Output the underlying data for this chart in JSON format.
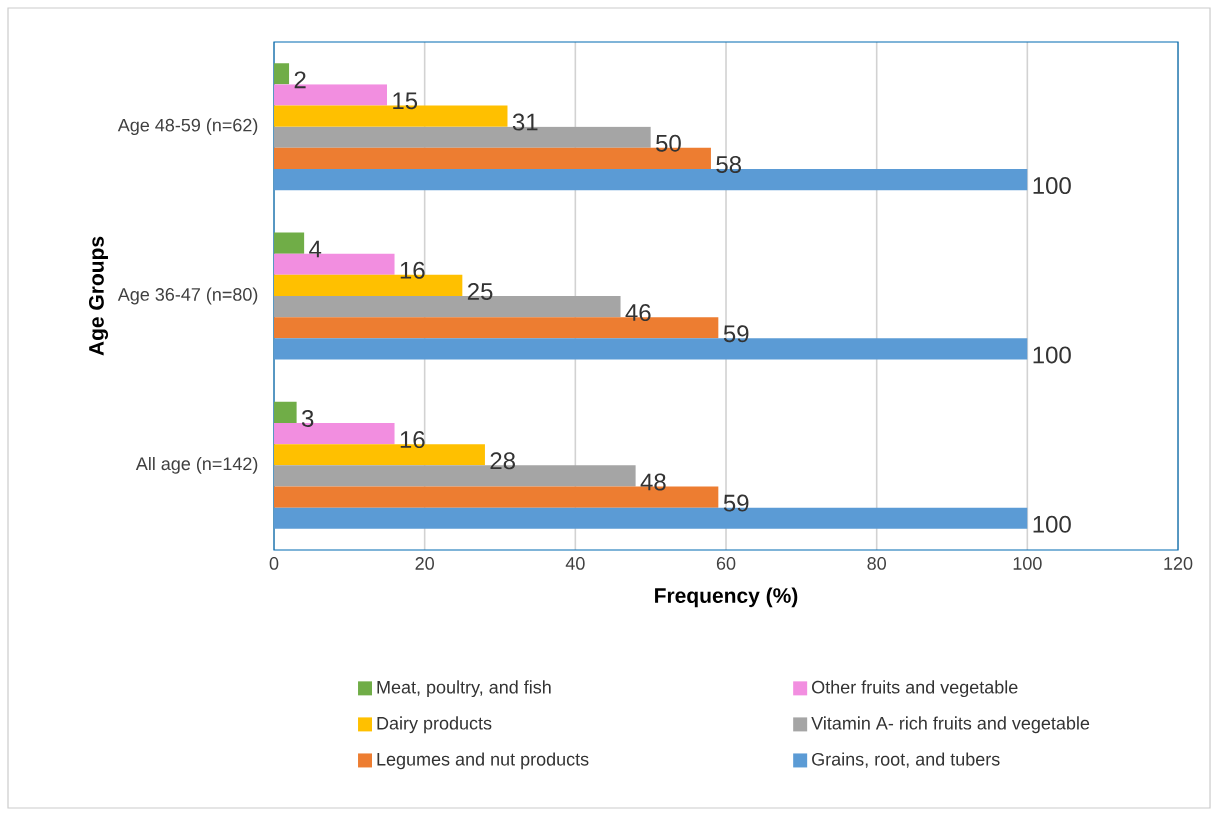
{
  "chart_data": {
    "type": "bar",
    "orientation": "horizontal",
    "xlabel": "Frequency (%)",
    "ylabel": "Age Groups",
    "categories": [
      "Age 48-59 (n=62)",
      "Age 36-47 (n=80)",
      "All age (n=142)"
    ],
    "series": [
      {
        "name": "Meat, poultry, and fish",
        "color": "#70ad47",
        "values": [
          2,
          4,
          3
        ]
      },
      {
        "name": "Other fruits and vegetable",
        "color": "#f28ee0",
        "values": [
          15,
          16,
          16
        ]
      },
      {
        "name": "Dairy products",
        "color": "#ffc000",
        "values": [
          31,
          25,
          28
        ]
      },
      {
        "name": "Vitamin A- rich fruits and vegetable",
        "color": "#a5a5a5",
        "values": [
          50,
          46,
          48
        ]
      },
      {
        "name": "Legumes and nut products",
        "color": "#ed7d31",
        "values": [
          58,
          59,
          59
        ]
      },
      {
        "name": "Grains, root, and tubers",
        "color": "#5b9bd5",
        "values": [
          100,
          100,
          100
        ]
      }
    ],
    "xlim": [
      0,
      120
    ],
    "xticks": [
      0,
      20,
      40,
      60,
      80,
      100,
      120
    ],
    "grid": "x",
    "legend": "bottom",
    "data_labels": true
  }
}
